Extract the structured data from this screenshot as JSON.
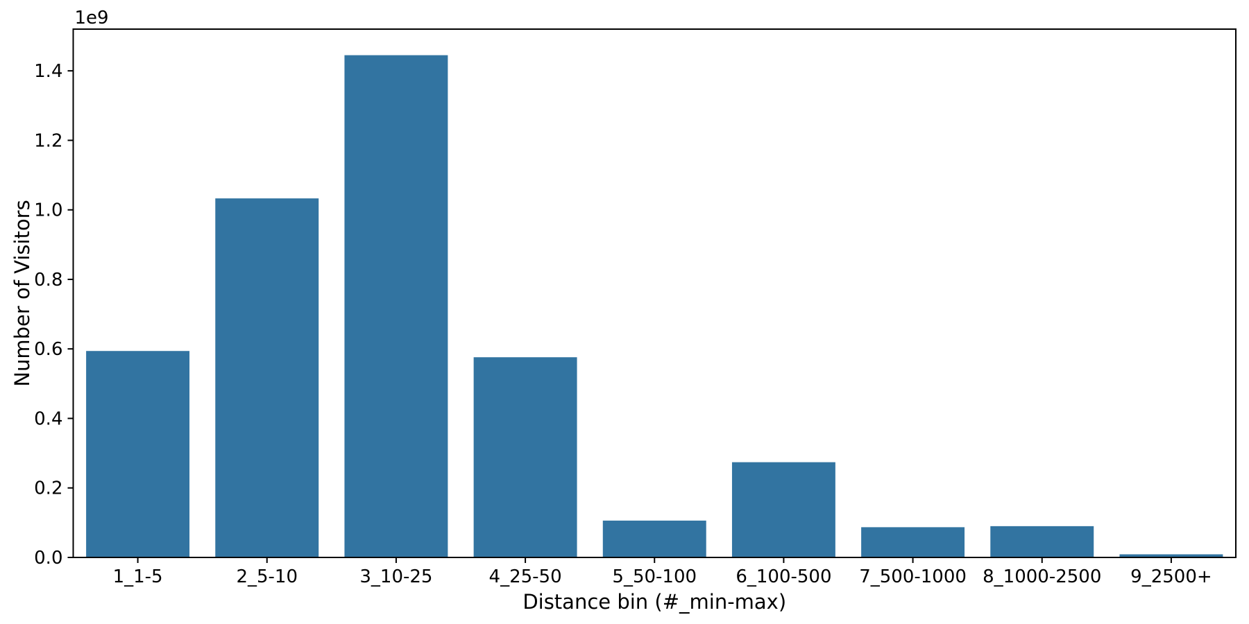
{
  "figure": {
    "background_color": "#ffffff",
    "frame_color": "#000000",
    "text_color": "#000000"
  },
  "chart_data": {
    "type": "bar",
    "title": "",
    "xlabel": "Distance bin (#_min-max)",
    "ylabel": "Number of Visitors",
    "y_offset_label": "1e9",
    "categories": [
      "1_1-5",
      "2_5-10",
      "3_10-25",
      "4_25-50",
      "5_50-100",
      "6_100-500",
      "7_500-1000",
      "8_1000-2500",
      "9_2500+"
    ],
    "values": [
      594000000,
      1033000000,
      1445000000,
      576000000,
      106000000,
      274000000,
      87000000,
      90000000,
      9000000
    ],
    "bar_color": "#3274a1",
    "ylim": [
      0,
      1520000000
    ],
    "yticks": [
      0,
      200000000,
      400000000,
      600000000,
      800000000,
      1000000000,
      1200000000,
      1400000000
    ],
    "ytick_labels": [
      "0.0",
      "0.2",
      "0.4",
      "0.6",
      "0.8",
      "1.0",
      "1.2",
      "1.4"
    ],
    "grid": false,
    "legend": null,
    "frame": "full-box",
    "tick_direction": "out"
  }
}
